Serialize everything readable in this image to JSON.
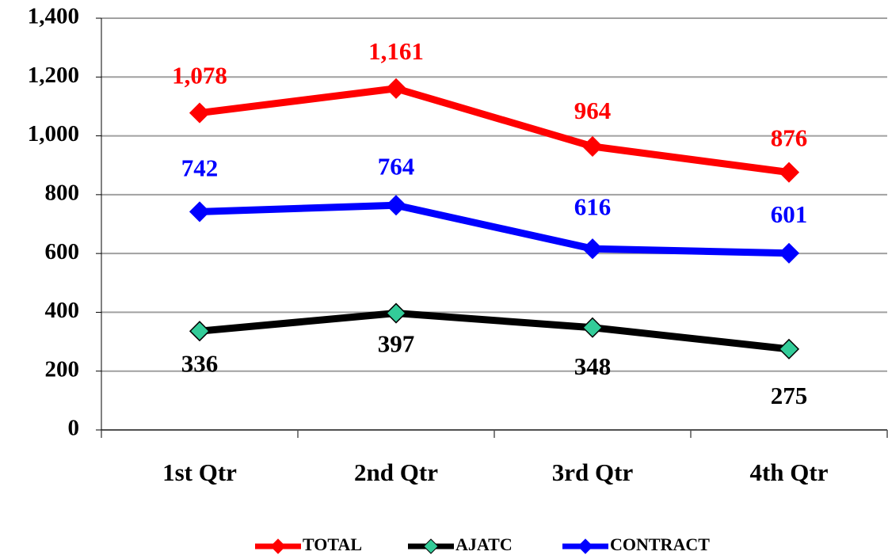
{
  "chart_data": {
    "type": "line",
    "categories": [
      "1st Qtr",
      "2nd Qtr",
      "3rd Qtr",
      "4th Qtr"
    ],
    "series": [
      {
        "name": "TOTAL",
        "color": "#ff0000",
        "marker_color": "#ff0000",
        "values": [
          1078,
          1161,
          964,
          876
        ],
        "value_labels": [
          "1,078",
          "1,161",
          "964",
          "876"
        ]
      },
      {
        "name": "AJATC",
        "color": "#000000",
        "marker_color": "#33cc99",
        "values": [
          336,
          397,
          348,
          275
        ]
      },
      {
        "name": "CONTRACT",
        "color": "#0000ff",
        "marker_color": "#0000ff",
        "values": [
          742,
          764,
          616,
          601
        ]
      }
    ],
    "ylim": [
      0,
      1400
    ],
    "yticks": [
      0,
      200,
      400,
      600,
      800,
      {
        "value": 1000,
        "label": "1,000"
      },
      {
        "value": 1200,
        "label": "1,200"
      },
      {
        "value": 1400,
        "label": "1,400"
      }
    ],
    "grid": true,
    "legend": "bottom"
  }
}
